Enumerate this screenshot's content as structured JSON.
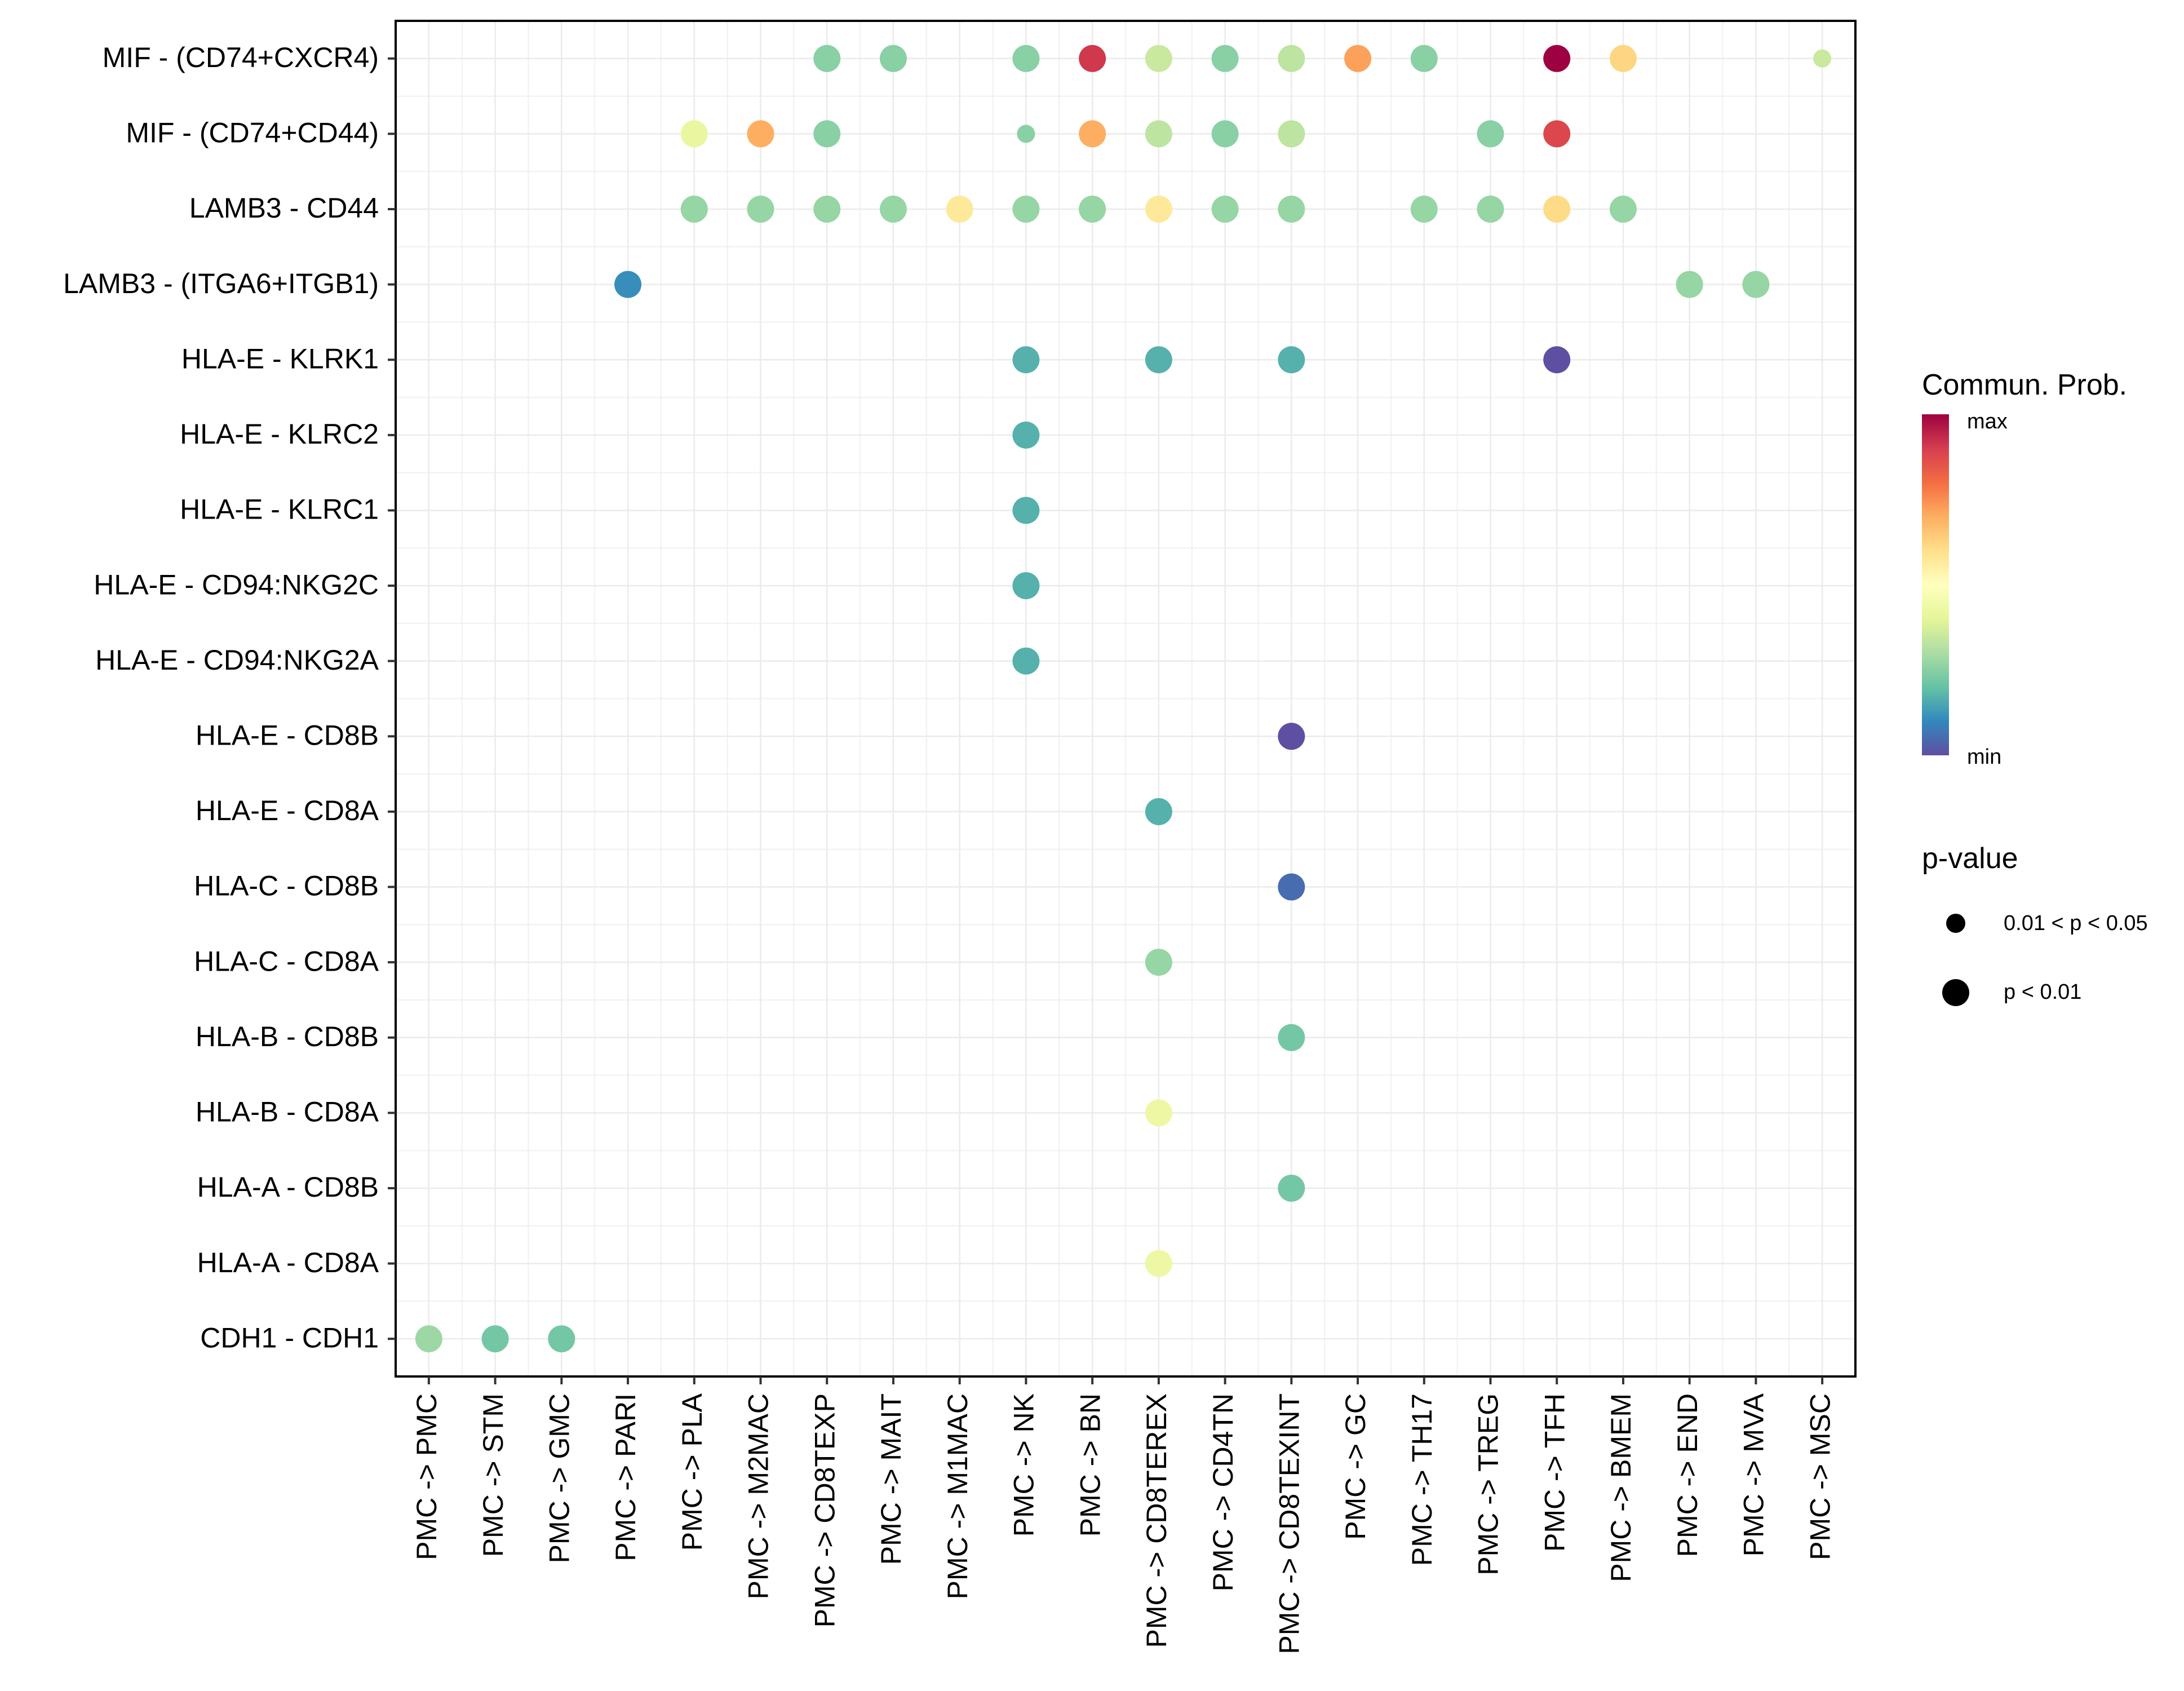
{
  "chart_data": {
    "type": "scatter",
    "subtype": "dot-plot",
    "title": "",
    "xlabel": "",
    "ylabel": "",
    "grid": true,
    "categories_x": [
      "PMC -> PMC",
      "PMC -> STM",
      "PMC -> GMC",
      "PMC -> PARI",
      "PMC -> PLA",
      "PMC -> M2MAC",
      "PMC -> CD8TEXP",
      "PMC -> MAIT",
      "PMC -> M1MAC",
      "PMC -> NK",
      "PMC -> BN",
      "PMC -> CD8TEREX",
      "PMC -> CD4TN",
      "PMC -> CD8TEXINT",
      "PMC -> GC",
      "PMC -> TH17",
      "PMC -> TREG",
      "PMC -> TFH",
      "PMC -> BMEM",
      "PMC -> END",
      "PMC -> MVA",
      "PMC -> MSC"
    ],
    "categories_y": [
      "MIF - (CD74+CXCR4)",
      "MIF - (CD74+CD44)",
      "LAMB3 - CD44",
      "LAMB3 - (ITGA6+ITGB1)",
      "HLA-E - KLRK1",
      "HLA-E - KLRC2",
      "HLA-E - KLRC1",
      "HLA-E - CD94:NKG2C",
      "HLA-E - CD94:NKG2A",
      "HLA-E - CD8B",
      "HLA-E - CD8A",
      "HLA-C - CD8B",
      "HLA-C - CD8A",
      "HLA-B - CD8B",
      "HLA-B - CD8A",
      "HLA-A - CD8B",
      "HLA-A - CD8A",
      "CDH1 - CDH1"
    ],
    "color_scale": {
      "title": "Commun. Prob.",
      "low_label": "min",
      "high_label": "max",
      "palette": [
        "#5E4FA2",
        "#3288BD",
        "#66C2A5",
        "#ABDDA4",
        "#E6F598",
        "#FFFFBF",
        "#FEE08B",
        "#FDAE61",
        "#F46D43",
        "#D53E4F",
        "#9E0142"
      ]
    },
    "size_legend": {
      "title": "p-value",
      "items": [
        {
          "label": "0.01 < p < 0.05",
          "size": "small"
        },
        {
          "label": "p < 0.01",
          "size": "large"
        }
      ]
    },
    "points": [
      {
        "x": "PMC -> CD8TEXP",
        "y": "MIF - (CD74+CXCR4)",
        "prob": 0.25,
        "pval": "p < 0.01"
      },
      {
        "x": "PMC -> MAIT",
        "y": "MIF - (CD74+CXCR4)",
        "prob": 0.25,
        "pval": "p < 0.01"
      },
      {
        "x": "PMC -> NK",
        "y": "MIF - (CD74+CXCR4)",
        "prob": 0.25,
        "pval": "p < 0.01"
      },
      {
        "x": "PMC -> BN",
        "y": "MIF - (CD74+CXCR4)",
        "prob": 0.91,
        "pval": "p < 0.01"
      },
      {
        "x": "PMC -> CD8TEREX",
        "y": "MIF - (CD74+CXCR4)",
        "prob": 0.35,
        "pval": "p < 0.01"
      },
      {
        "x": "PMC -> CD4TN",
        "y": "MIF - (CD74+CXCR4)",
        "prob": 0.25,
        "pval": "p < 0.01"
      },
      {
        "x": "PMC -> CD8TEXINT",
        "y": "MIF - (CD74+CXCR4)",
        "prob": 0.33,
        "pval": "p < 0.01"
      },
      {
        "x": "PMC -> GC",
        "y": "MIF - (CD74+CXCR4)",
        "prob": 0.72,
        "pval": "p < 0.01"
      },
      {
        "x": "PMC -> TH17",
        "y": "MIF - (CD74+CXCR4)",
        "prob": 0.25,
        "pval": "p < 0.01"
      },
      {
        "x": "PMC -> TFH",
        "y": "MIF - (CD74+CXCR4)",
        "prob": 1.0,
        "pval": "p < 0.01"
      },
      {
        "x": "PMC -> BMEM",
        "y": "MIF - (CD74+CXCR4)",
        "prob": 0.62,
        "pval": "p < 0.01"
      },
      {
        "x": "PMC -> MSC",
        "y": "MIF - (CD74+CXCR4)",
        "prob": 0.35,
        "pval": "0.01 < p < 0.05"
      },
      {
        "x": "PMC -> PLA",
        "y": "MIF - (CD74+CD44)",
        "prob": 0.42,
        "pval": "p < 0.01"
      },
      {
        "x": "PMC -> M2MAC",
        "y": "MIF - (CD74+CD44)",
        "prob": 0.7,
        "pval": "p < 0.01"
      },
      {
        "x": "PMC -> CD8TEXP",
        "y": "MIF - (CD74+CD44)",
        "prob": 0.25,
        "pval": "p < 0.01"
      },
      {
        "x": "PMC -> NK",
        "y": "MIF - (CD74+CD44)",
        "prob": 0.25,
        "pval": "0.01 < p < 0.05"
      },
      {
        "x": "PMC -> BN",
        "y": "MIF - (CD74+CD44)",
        "prob": 0.7,
        "pval": "p < 0.01"
      },
      {
        "x": "PMC -> CD8TEREX",
        "y": "MIF - (CD74+CD44)",
        "prob": 0.33,
        "pval": "p < 0.01"
      },
      {
        "x": "PMC -> CD4TN",
        "y": "MIF - (CD74+CD44)",
        "prob": 0.25,
        "pval": "p < 0.01"
      },
      {
        "x": "PMC -> CD8TEXINT",
        "y": "MIF - (CD74+CD44)",
        "prob": 0.33,
        "pval": "p < 0.01"
      },
      {
        "x": "PMC -> TREG",
        "y": "MIF - (CD74+CD44)",
        "prob": 0.25,
        "pval": "p < 0.01"
      },
      {
        "x": "PMC -> TFH",
        "y": "MIF - (CD74+CD44)",
        "prob": 0.88,
        "pval": "p < 0.01"
      },
      {
        "x": "PMC -> PLA",
        "y": "LAMB3 - CD44",
        "prob": 0.27,
        "pval": "p < 0.01"
      },
      {
        "x": "PMC -> M2MAC",
        "y": "LAMB3 - CD44",
        "prob": 0.27,
        "pval": "p < 0.01"
      },
      {
        "x": "PMC -> CD8TEXP",
        "y": "LAMB3 - CD44",
        "prob": 0.27,
        "pval": "p < 0.01"
      },
      {
        "x": "PMC -> MAIT",
        "y": "LAMB3 - CD44",
        "prob": 0.27,
        "pval": "p < 0.01"
      },
      {
        "x": "PMC -> M1MAC",
        "y": "LAMB3 - CD44",
        "prob": 0.57,
        "pval": "p < 0.01"
      },
      {
        "x": "PMC -> NK",
        "y": "LAMB3 - CD44",
        "prob": 0.27,
        "pval": "p < 0.01"
      },
      {
        "x": "PMC -> BN",
        "y": "LAMB3 - CD44",
        "prob": 0.27,
        "pval": "p < 0.01"
      },
      {
        "x": "PMC -> CD8TEREX",
        "y": "LAMB3 - CD44",
        "prob": 0.57,
        "pval": "p < 0.01"
      },
      {
        "x": "PMC -> CD4TN",
        "y": "LAMB3 - CD44",
        "prob": 0.27,
        "pval": "p < 0.01"
      },
      {
        "x": "PMC -> CD8TEXINT",
        "y": "LAMB3 - CD44",
        "prob": 0.27,
        "pval": "p < 0.01"
      },
      {
        "x": "PMC -> TH17",
        "y": "LAMB3 - CD44",
        "prob": 0.27,
        "pval": "p < 0.01"
      },
      {
        "x": "PMC -> TREG",
        "y": "LAMB3 - CD44",
        "prob": 0.27,
        "pval": "p < 0.01"
      },
      {
        "x": "PMC -> TFH",
        "y": "LAMB3 - CD44",
        "prob": 0.61,
        "pval": "p < 0.01"
      },
      {
        "x": "PMC -> BMEM",
        "y": "LAMB3 - CD44",
        "prob": 0.27,
        "pval": "p < 0.01"
      },
      {
        "x": "PMC -> PARI",
        "y": "LAMB3 - (ITGA6+ITGB1)",
        "prob": 0.11,
        "pval": "p < 0.01"
      },
      {
        "x": "PMC -> END",
        "y": "LAMB3 - (ITGA6+ITGB1)",
        "prob": 0.27,
        "pval": "p < 0.01"
      },
      {
        "x": "PMC -> MVA",
        "y": "LAMB3 - (ITGA6+ITGB1)",
        "prob": 0.27,
        "pval": "p < 0.01"
      },
      {
        "x": "PMC -> NK",
        "y": "HLA-E - KLRK1",
        "prob": 0.17,
        "pval": "p < 0.01"
      },
      {
        "x": "PMC -> CD8TEREX",
        "y": "HLA-E - KLRK1",
        "prob": 0.17,
        "pval": "p < 0.01"
      },
      {
        "x": "PMC -> CD8TEXINT",
        "y": "HLA-E - KLRK1",
        "prob": 0.17,
        "pval": "p < 0.01"
      },
      {
        "x": "PMC -> TFH",
        "y": "HLA-E - KLRK1",
        "prob": 0.0,
        "pval": "p < 0.01"
      },
      {
        "x": "PMC -> NK",
        "y": "HLA-E - KLRC2",
        "prob": 0.17,
        "pval": "p < 0.01"
      },
      {
        "x": "PMC -> NK",
        "y": "HLA-E - KLRC1",
        "prob": 0.17,
        "pval": "p < 0.01"
      },
      {
        "x": "PMC -> NK",
        "y": "HLA-E - CD94:NKG2C",
        "prob": 0.17,
        "pval": "p < 0.01"
      },
      {
        "x": "PMC -> NK",
        "y": "HLA-E - CD94:NKG2A",
        "prob": 0.17,
        "pval": "p < 0.01"
      },
      {
        "x": "PMC -> CD8TEXINT",
        "y": "HLA-E - CD8B",
        "prob": 0.0,
        "pval": "p < 0.01"
      },
      {
        "x": "PMC -> CD8TEREX",
        "y": "HLA-E - CD8A",
        "prob": 0.17,
        "pval": "p < 0.01"
      },
      {
        "x": "PMC -> CD8TEXINT",
        "y": "HLA-C - CD8B",
        "prob": 0.05,
        "pval": "p < 0.01"
      },
      {
        "x": "PMC -> CD8TEREX",
        "y": "HLA-C - CD8A",
        "prob": 0.27,
        "pval": "p < 0.01"
      },
      {
        "x": "PMC -> CD8TEXINT",
        "y": "HLA-B - CD8B",
        "prob": 0.22,
        "pval": "p < 0.01"
      },
      {
        "x": "PMC -> CD8TEREX",
        "y": "HLA-B - CD8A",
        "prob": 0.43,
        "pval": "p < 0.01"
      },
      {
        "x": "PMC -> CD8TEXINT",
        "y": "HLA-A - CD8B",
        "prob": 0.22,
        "pval": "p < 0.01"
      },
      {
        "x": "PMC -> CD8TEREX",
        "y": "HLA-A - CD8A",
        "prob": 0.43,
        "pval": "p < 0.01"
      },
      {
        "x": "PMC -> PMC",
        "y": "CDH1 - CDH1",
        "prob": 0.28,
        "pval": "p < 0.01"
      },
      {
        "x": "PMC -> STM",
        "y": "CDH1 - CDH1",
        "prob": 0.22,
        "pval": "p < 0.01"
      },
      {
        "x": "PMC -> GMC",
        "y": "CDH1 - CDH1",
        "prob": 0.22,
        "pval": "p < 0.01"
      }
    ]
  }
}
